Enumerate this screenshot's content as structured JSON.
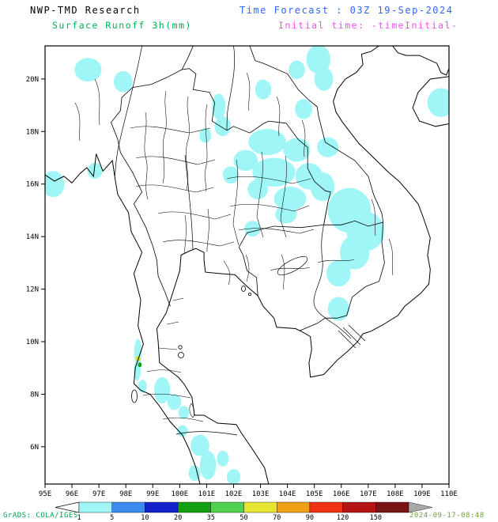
{
  "header": {
    "line1": "NWP-TMD Research",
    "line2": "Surface Runoff 3h(mm)",
    "time_forecast": "Time Forecast : 03Z 19-Sep-2024",
    "initial_time": "Initial time: -timeInitial-",
    "colors": {
      "line1": "#000000",
      "line2": "#00b050",
      "time_forecast": "#3366ee",
      "initial_time": "#ee50ee"
    }
  },
  "axes": {
    "lat_ticks": [
      {
        "label": "20N",
        "deg": 20
      },
      {
        "label": "18N",
        "deg": 18
      },
      {
        "label": "16N",
        "deg": 16
      },
      {
        "label": "14N",
        "deg": 14
      },
      {
        "label": "12N",
        "deg": 12
      },
      {
        "label": "10N",
        "deg": 10
      },
      {
        "label": "8N",
        "deg": 8
      },
      {
        "label": "6N",
        "deg": 6
      }
    ],
    "lon_ticks": [
      {
        "label": "95E",
        "deg": 95
      },
      {
        "label": "96E",
        "deg": 96
      },
      {
        "label": "97E",
        "deg": 97
      },
      {
        "label": "98E",
        "deg": 98
      },
      {
        "label": "99E",
        "deg": 99
      },
      {
        "label": "100E",
        "deg": 100
      },
      {
        "label": "101E",
        "deg": 101
      },
      {
        "label": "102E",
        "deg": 102
      },
      {
        "label": "103E",
        "deg": 103
      },
      {
        "label": "104E",
        "deg": 104
      },
      {
        "label": "105E",
        "deg": 105
      },
      {
        "label": "106E",
        "deg": 106
      },
      {
        "label": "107E",
        "deg": 107
      },
      {
        "label": "108E",
        "deg": 108
      },
      {
        "label": "109E",
        "deg": 109
      },
      {
        "label": "110E",
        "deg": 110
      }
    ]
  },
  "legend": {
    "labels": [
      "1",
      "5",
      "10",
      "20",
      "35",
      "50",
      "70",
      "90",
      "120",
      "150"
    ],
    "colors": [
      "#a0f6f6",
      "#3c8cf0",
      "#1422cc",
      "#12a012",
      "#50d250",
      "#e6e632",
      "#f0a014",
      "#f03214",
      "#b41414",
      "#781414"
    ],
    "left_arrow_color": "#ffffff",
    "right_arrow_color": "#a8a8a8"
  },
  "footer": {
    "credit": "GrADS: COLA/IGES",
    "timestamp": "2024-09-17-08:48",
    "credit_color": "#00a050",
    "timestamp_color": "#6f9f3f"
  },
  "map": {
    "runoff_color": "#a0f6f6",
    "patches": [
      {
        "lon": 105.15,
        "lat": 20.75,
        "rlon": 0.45,
        "rlat": 0.55
      },
      {
        "lon": 105.35,
        "lat": 20.0,
        "rlon": 0.35,
        "rlat": 0.45
      },
      {
        "lon": 104.35,
        "lat": 20.35,
        "rlon": 0.3,
        "rlat": 0.35
      },
      {
        "lon": 109.7,
        "lat": 19.1,
        "rlon": 0.5,
        "rlat": 0.55
      },
      {
        "lon": 96.6,
        "lat": 20.35,
        "rlon": 0.5,
        "rlat": 0.45
      },
      {
        "lon": 97.9,
        "lat": 19.9,
        "rlon": 0.35,
        "rlat": 0.4
      },
      {
        "lon": 95.3,
        "lat": 16.0,
        "rlon": 0.42,
        "rlat": 0.5
      },
      {
        "lon": 96.85,
        "lat": 16.5,
        "rlon": 0.28,
        "rlat": 0.3
      },
      {
        "lon": 101.45,
        "lat": 18.95,
        "rlon": 0.25,
        "rlat": 0.5
      },
      {
        "lon": 101.6,
        "lat": 18.2,
        "rlon": 0.3,
        "rlat": 0.38
      },
      {
        "lon": 100.95,
        "lat": 17.85,
        "rlon": 0.22,
        "rlat": 0.28
      },
      {
        "lon": 103.25,
        "lat": 17.6,
        "rlon": 0.7,
        "rlat": 0.5
      },
      {
        "lon": 104.35,
        "lat": 17.3,
        "rlon": 0.5,
        "rlat": 0.45
      },
      {
        "lon": 102.45,
        "lat": 16.9,
        "rlon": 0.45,
        "rlat": 0.4
      },
      {
        "lon": 103.5,
        "lat": 16.45,
        "rlon": 0.8,
        "rlat": 0.55
      },
      {
        "lon": 104.8,
        "lat": 16.3,
        "rlon": 0.5,
        "rlat": 0.5
      },
      {
        "lon": 102.9,
        "lat": 15.8,
        "rlon": 0.38,
        "rlat": 0.38
      },
      {
        "lon": 104.1,
        "lat": 15.45,
        "rlon": 0.6,
        "rlat": 0.45
      },
      {
        "lon": 105.3,
        "lat": 15.9,
        "rlon": 0.45,
        "rlat": 0.55
      },
      {
        "lon": 105.5,
        "lat": 17.4,
        "rlon": 0.4,
        "rlat": 0.38
      },
      {
        "lon": 104.6,
        "lat": 18.85,
        "rlon": 0.32,
        "rlat": 0.38
      },
      {
        "lon": 103.1,
        "lat": 19.6,
        "rlon": 0.3,
        "rlat": 0.38
      },
      {
        "lon": 101.9,
        "lat": 16.35,
        "rlon": 0.3,
        "rlat": 0.33
      },
      {
        "lon": 106.3,
        "lat": 15.0,
        "rlon": 0.8,
        "rlat": 0.85
      },
      {
        "lon": 106.9,
        "lat": 14.2,
        "rlon": 0.7,
        "rlat": 0.75
      },
      {
        "lon": 106.5,
        "lat": 13.4,
        "rlon": 0.55,
        "rlat": 0.65
      },
      {
        "lon": 105.9,
        "lat": 12.6,
        "rlon": 0.45,
        "rlat": 0.5
      },
      {
        "lon": 103.95,
        "lat": 14.85,
        "rlon": 0.4,
        "rlat": 0.35
      },
      {
        "lon": 102.7,
        "lat": 14.3,
        "rlon": 0.3,
        "rlat": 0.3
      },
      {
        "lon": 105.9,
        "lat": 11.25,
        "rlon": 0.4,
        "rlat": 0.45
      },
      {
        "lon": 98.45,
        "lat": 9.6,
        "rlon": 0.14,
        "rlat": 0.5
      },
      {
        "lon": 98.42,
        "lat": 8.9,
        "rlon": 0.13,
        "rlat": 0.38
      },
      {
        "lon": 98.62,
        "lat": 8.3,
        "rlon": 0.16,
        "rlat": 0.25
      },
      {
        "lon": 99.35,
        "lat": 8.15,
        "rlon": 0.3,
        "rlat": 0.5
      },
      {
        "lon": 99.8,
        "lat": 7.7,
        "rlon": 0.26,
        "rlat": 0.3
      },
      {
        "lon": 100.15,
        "lat": 7.3,
        "rlon": 0.2,
        "rlat": 0.25
      },
      {
        "lon": 100.1,
        "lat": 6.6,
        "rlon": 0.2,
        "rlat": 0.22
      },
      {
        "lon": 100.75,
        "lat": 6.05,
        "rlon": 0.35,
        "rlat": 0.4
      },
      {
        "lon": 101.05,
        "lat": 5.3,
        "rlon": 0.3,
        "rlat": 0.55
      },
      {
        "lon": 100.55,
        "lat": 5.0,
        "rlon": 0.22,
        "rlat": 0.3
      },
      {
        "lon": 101.6,
        "lat": 5.55,
        "rlon": 0.22,
        "rlat": 0.3
      },
      {
        "lon": 102.0,
        "lat": 4.85,
        "rlon": 0.25,
        "rlat": 0.3
      }
    ],
    "spot_values": [
      {
        "lon": 98.45,
        "lat": 9.35,
        "rlon": 0.08,
        "rlat": 0.1,
        "color": "#e6dc1e"
      },
      {
        "lon": 98.52,
        "lat": 9.12,
        "rlon": 0.07,
        "rlat": 0.09,
        "color": "#14a014"
      }
    ]
  }
}
